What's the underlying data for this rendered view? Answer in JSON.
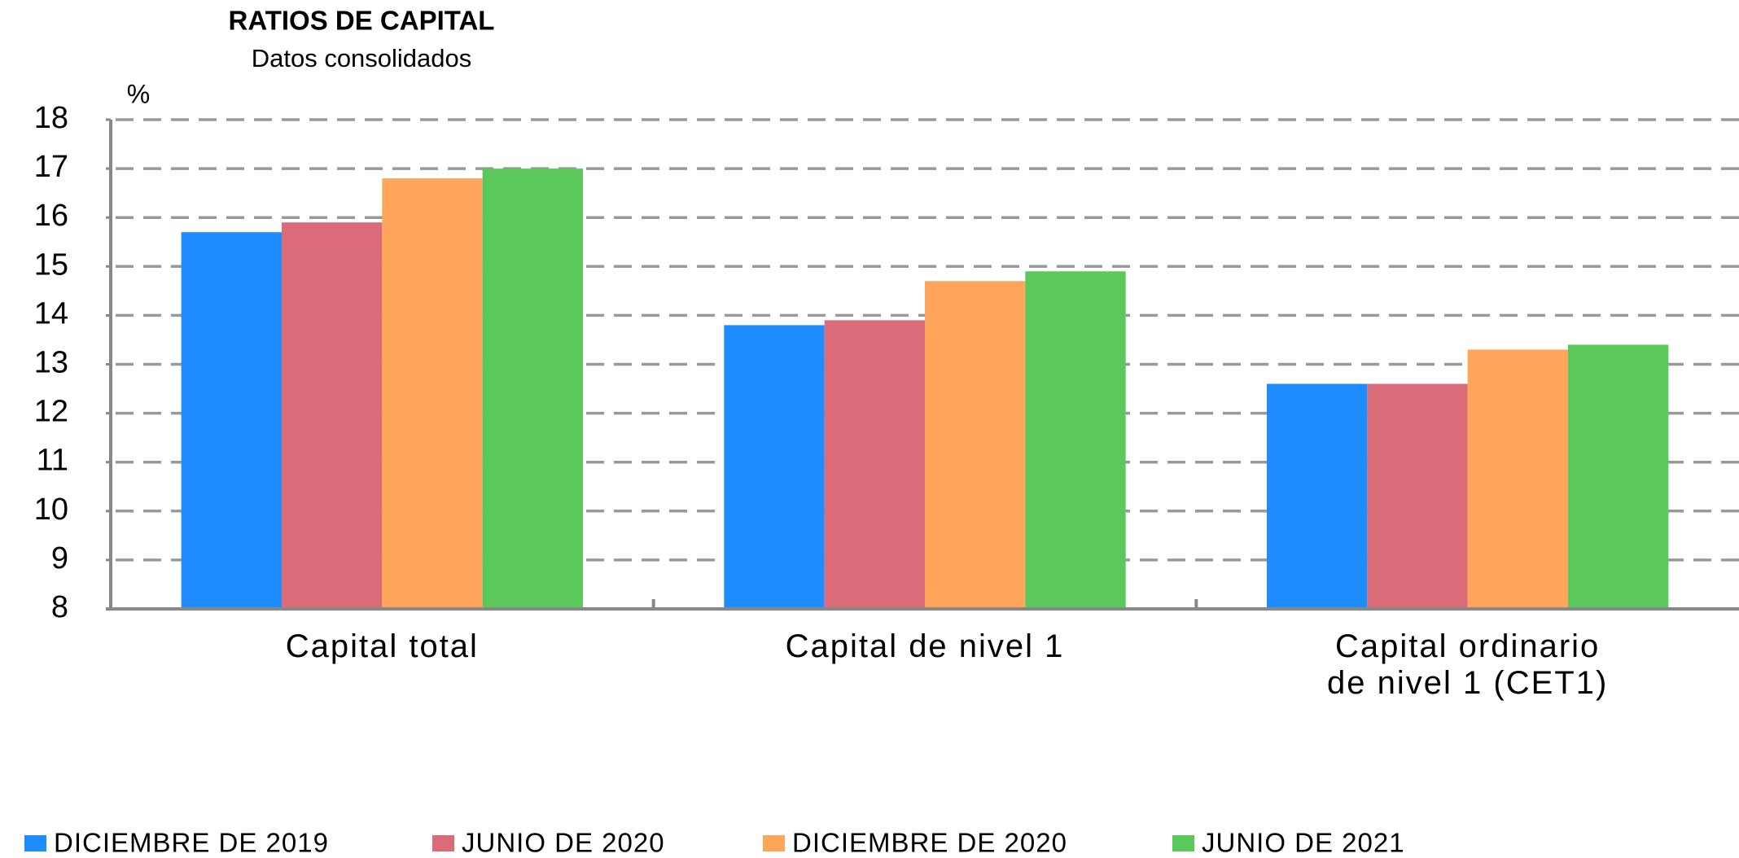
{
  "chart_data": {
    "type": "bar",
    "title": "RATIOS DE CAPITAL",
    "subtitle": "Datos consolidados",
    "y_unit": "%",
    "categories": [
      "Capital total",
      "Capital de nivel 1",
      "Capital ordinario\nde nivel 1 (CET1)"
    ],
    "series": [
      {
        "name": "DICIEMBRE DE 2019",
        "color": "#1e8cff",
        "values": [
          15.7,
          13.8,
          12.6
        ]
      },
      {
        "name": "JUNIO DE 2020",
        "color": "#db6b79",
        "values": [
          15.9,
          13.9,
          12.6
        ]
      },
      {
        "name": "DICIEMBRE DE 2020",
        "color": "#ffa55c",
        "values": [
          16.8,
          14.7,
          13.3
        ]
      },
      {
        "name": "JUNIO DE 2021",
        "color": "#5bc85b",
        "values": [
          17.0,
          14.9,
          13.4
        ]
      }
    ],
    "ylim": [
      8,
      18
    ],
    "yticks": [
      8,
      9,
      10,
      11,
      12,
      13,
      14,
      15,
      16,
      17,
      18
    ],
    "grid": true
  }
}
